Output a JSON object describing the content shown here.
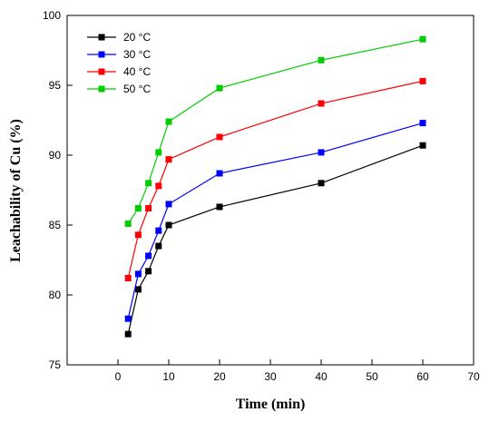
{
  "chart_data": {
    "type": "line",
    "xlabel": "Time (min)",
    "ylabel": "Leachability of Cu (%)",
    "xlim": [
      -10,
      70
    ],
    "ylim": [
      75,
      100
    ],
    "xticks": [
      "0",
      "10",
      "20",
      "30",
      "40",
      "50",
      "60",
      "70"
    ],
    "yticks": [
      "75",
      "80",
      "85",
      "90",
      "95",
      "100"
    ],
    "x": [
      2,
      4,
      6,
      8,
      10,
      20,
      40,
      60
    ],
    "legend_position": "top-left",
    "grid": false,
    "series": [
      {
        "name": "20 °C",
        "color": "#000000",
        "values": [
          77.2,
          80.4,
          81.7,
          83.5,
          85.0,
          86.3,
          88.0,
          90.7
        ]
      },
      {
        "name": "30 °C",
        "color": "#0000ff",
        "values": [
          78.3,
          81.5,
          82.8,
          84.6,
          86.5,
          88.7,
          90.2,
          92.3
        ]
      },
      {
        "name": "40 °C",
        "color": "#ff0000",
        "values": [
          81.2,
          84.3,
          86.2,
          87.8,
          89.7,
          91.3,
          93.7,
          95.3
        ]
      },
      {
        "name": "50 °C",
        "color": "#00cc00",
        "values": [
          85.1,
          86.2,
          88.0,
          90.2,
          92.4,
          94.8,
          96.8,
          98.3
        ]
      }
    ]
  }
}
